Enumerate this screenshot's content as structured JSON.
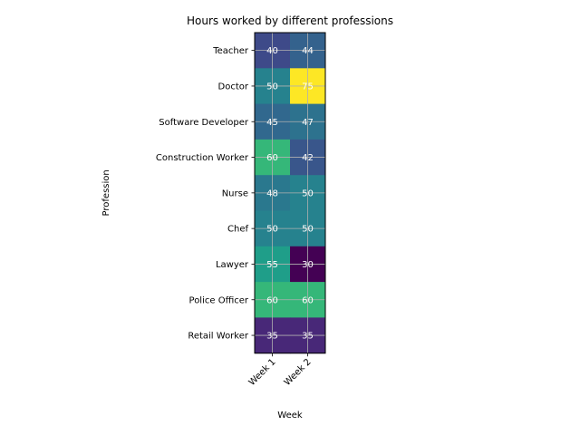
{
  "chart_data": {
    "type": "heatmap",
    "title": "Hours worked by different professions",
    "xlabel": "Week",
    "ylabel": "Profession",
    "columns": [
      "Week 1",
      "Week 2"
    ],
    "rows": [
      "Teacher",
      "Doctor",
      "Software Developer",
      "Construction Worker",
      "Nurse",
      "Chef",
      "Lawyer",
      "Police Officer",
      "Retail Worker"
    ],
    "values": [
      [
        40,
        44
      ],
      [
        50,
        75
      ],
      [
        45,
        47
      ],
      [
        60,
        42
      ],
      [
        48,
        50
      ],
      [
        50,
        50
      ],
      [
        55,
        30
      ],
      [
        60,
        60
      ],
      [
        35,
        35
      ]
    ],
    "colormap": "viridis",
    "value_range": [
      30,
      75
    ],
    "grid": true,
    "cell_labels": true
  }
}
